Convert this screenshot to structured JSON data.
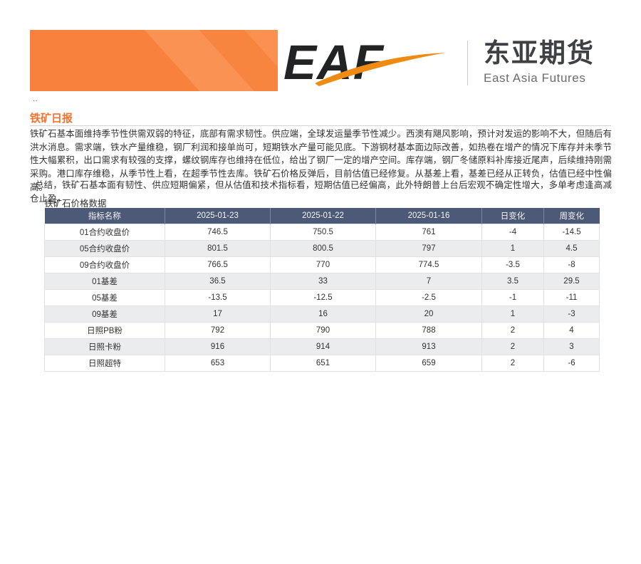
{
  "brand": {
    "logo_text": "EAF",
    "company_cn": "东亚期货",
    "company_en": "East Asia Futures"
  },
  "page": {
    "corner_mark": "..",
    "title": "铁矿日报"
  },
  "report": {
    "paragraph1": "铁矿石基本面维持季节性供需双弱的特征，底部有需求韧性。供应端，全球发运量季节性减少。西澳有飓风影响，预计对发运的影响不大，但随后有洪水消息。需求端，铁水产量维稳，钢厂利润和接单尚可，短期铁水产量可能见底。下游钢材基本面边际改善，如热卷在增产的情况下库存并未季节性大幅累积，出口需求有较强的支撑，螺纹钢库存也维持在低位，给出了钢厂一定的增产空间。库存端，钢厂冬储原料补库接近尾声，后续维持刚需采购。港口库存维稳，从季节性上看，在超季节性去库。铁矿石价格反弹后，目前估值已经修复。从基差上看，基差已经从正转负，估值已经中性偏高。",
    "paragraph2": "总结，铁矿石基本面有韧性、供应短期偏紧，但从估值和技术指标看，短期估值已经偏高，此外特朗普上台后宏观不确定性增大，多单考虑逢高减仓止盈。",
    "table_title": "铁矿石价格数据"
  },
  "chart_data": {
    "type": "table",
    "title": "铁矿石价格数据",
    "columns": [
      "指标名称",
      "2025-01-23",
      "2025-01-22",
      "2025-01-16",
      "日变化",
      "周变化"
    ],
    "rows": [
      [
        "01合约收盘价",
        "746.5",
        "750.5",
        "761",
        "-4",
        "-14.5"
      ],
      [
        "05合约收盘价",
        "801.5",
        "800.5",
        "797",
        "1",
        "4.5"
      ],
      [
        "09合约收盘价",
        "766.5",
        "770",
        "774.5",
        "-3.5",
        "-8"
      ],
      [
        "01基差",
        "36.5",
        "33",
        "7",
        "3.5",
        "29.5"
      ],
      [
        "05基差",
        "-13.5",
        "-12.5",
        "-2.5",
        "-1",
        "-11"
      ],
      [
        "09基差",
        "17",
        "16",
        "20",
        "1",
        "-3"
      ],
      [
        "日照PB粉",
        "792",
        "790",
        "788",
        "2",
        "4"
      ],
      [
        "日照卡粉",
        "916",
        "914",
        "913",
        "2",
        "3"
      ],
      [
        "日照超特",
        "653",
        "651",
        "659",
        "2",
        "-6"
      ]
    ]
  },
  "colors": {
    "banner_orange": "#F8813D",
    "banner_orange_light": "#FA9254",
    "accent_orange": "#F4722F",
    "logo_swoosh": "#EF8A12",
    "logo_dark": "#212325",
    "table_header_bg": "#4D5A77",
    "row_alt_bg": "#EBECEE",
    "body_text": "#333333"
  }
}
